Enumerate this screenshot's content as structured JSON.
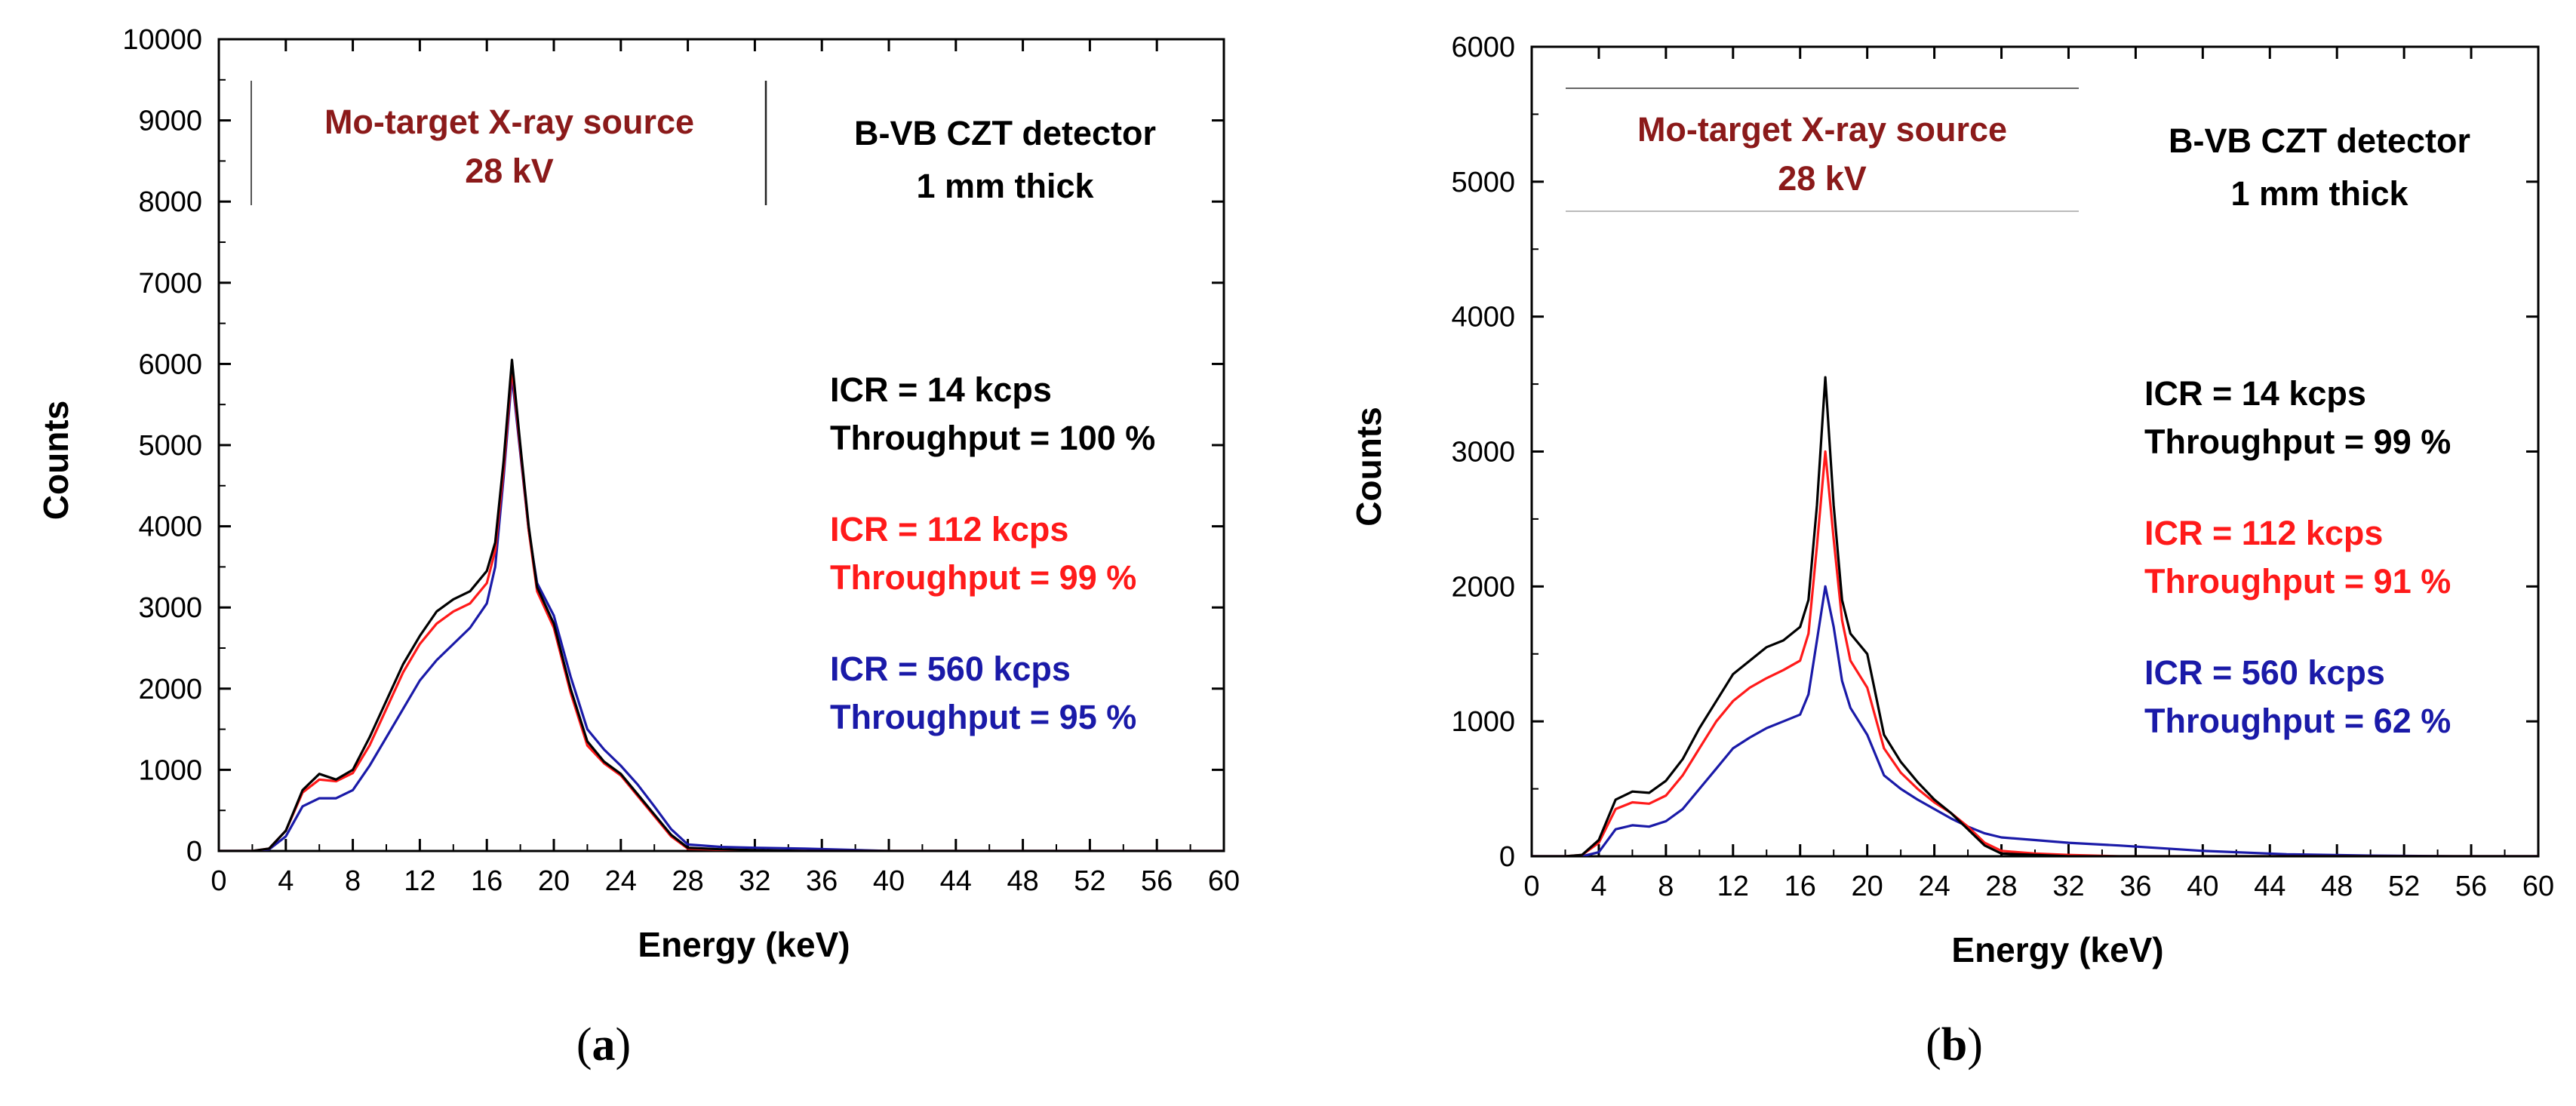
{
  "figure": {
    "panel_labels": [
      "a",
      "b"
    ]
  },
  "chart_data": [
    {
      "type": "line",
      "panel": "a",
      "xlabel": "Energy (keV)",
      "ylabel": "Counts",
      "xlim": [
        0,
        60
      ],
      "ylim": [
        0,
        10000
      ],
      "xticks": [
        "0",
        "4",
        "8",
        "12",
        "16",
        "20",
        "24",
        "28",
        "32",
        "36",
        "40",
        "44",
        "48",
        "52",
        "56",
        "60"
      ],
      "yticks": [
        "0",
        "1000",
        "2000",
        "3000",
        "4000",
        "5000",
        "6000",
        "7000",
        "8000",
        "9000",
        "10000"
      ],
      "source_label": [
        "Mo-target X-ray source",
        "28 kV"
      ],
      "detector_label": [
        "B-VB CZT detector",
        "1 mm thick"
      ],
      "colors": {
        "source": "#8b1a1a",
        "black": "#000000",
        "red": "#ff1a1a",
        "blue": "#1a1aa8"
      },
      "series": [
        {
          "name": "ICR = 14 kcps",
          "note": "Throughput = 100 %",
          "color": "#000000",
          "x": [
            0,
            2,
            3,
            4,
            5,
            6,
            7,
            8,
            9,
            10,
            11,
            12,
            13,
            14,
            15,
            16,
            16.5,
            17,
            17.5,
            18,
            18.5,
            19,
            20,
            21,
            22,
            23,
            24,
            25,
            26,
            27,
            28,
            30,
            32,
            35,
            40,
            50,
            60
          ],
          "y": [
            0,
            0,
            30,
            250,
            750,
            950,
            880,
            1000,
            1400,
            1850,
            2300,
            2650,
            2950,
            3100,
            3200,
            3450,
            3800,
            4800,
            6050,
            5000,
            4000,
            3250,
            2800,
            2000,
            1350,
            1100,
            950,
            700,
            450,
            200,
            40,
            20,
            10,
            0,
            0,
            0,
            0
          ]
        },
        {
          "name": "ICR = 112 kcps",
          "note": "Throughput = 99 %",
          "color": "#ff1a1a",
          "x": [
            0,
            2,
            3,
            4,
            5,
            6,
            7,
            8,
            9,
            10,
            11,
            12,
            13,
            14,
            15,
            16,
            16.5,
            17,
            17.5,
            18,
            18.5,
            19,
            20,
            21,
            22,
            23,
            24,
            25,
            26,
            27,
            28,
            30,
            32,
            35,
            40,
            50,
            60
          ],
          "y": [
            0,
            0,
            30,
            250,
            720,
            880,
            860,
            960,
            1300,
            1750,
            2200,
            2550,
            2800,
            2950,
            3050,
            3300,
            3700,
            4700,
            5950,
            4950,
            3950,
            3200,
            2750,
            1950,
            1300,
            1080,
            930,
            680,
            430,
            180,
            30,
            15,
            5,
            0,
            0,
            0,
            0
          ]
        },
        {
          "name": "ICR = 560 kcps",
          "note": "Throughput = 95 %",
          "color": "#1a1aa8",
          "x": [
            0,
            2,
            3,
            4,
            5,
            6,
            7,
            8,
            9,
            10,
            11,
            12,
            13,
            14,
            15,
            16,
            16.5,
            17,
            17.5,
            18,
            18.5,
            19,
            20,
            21,
            22,
            23,
            24,
            25,
            26,
            27,
            28,
            30,
            32,
            35,
            40,
            50,
            60
          ],
          "y": [
            0,
            0,
            20,
            180,
            550,
            650,
            650,
            750,
            1050,
            1400,
            1750,
            2100,
            2350,
            2550,
            2750,
            3050,
            3500,
            4600,
            5850,
            4900,
            3950,
            3300,
            2900,
            2150,
            1500,
            1250,
            1050,
            820,
            550,
            270,
            80,
            50,
            40,
            30,
            0,
            0,
            0
          ]
        }
      ]
    },
    {
      "type": "line",
      "panel": "b",
      "xlabel": "Energy (keV)",
      "ylabel": "Counts",
      "xlim": [
        0,
        60
      ],
      "ylim": [
        0,
        6000
      ],
      "xticks": [
        "0",
        "4",
        "8",
        "12",
        "16",
        "20",
        "24",
        "28",
        "32",
        "36",
        "40",
        "44",
        "48",
        "52",
        "56",
        "60"
      ],
      "yticks": [
        "0",
        "1000",
        "2000",
        "3000",
        "4000",
        "5000",
        "6000"
      ],
      "source_label": [
        "Mo-target X-ray source",
        "28 kV"
      ],
      "detector_label": [
        "B-VB CZT detector",
        "1 mm thick"
      ],
      "colors": {
        "source": "#8b1a1a",
        "black": "#000000",
        "red": "#ff1a1a",
        "blue": "#1a1aa8"
      },
      "series": [
        {
          "name": "ICR = 14 kcps",
          "note": "Throughput = 99 %",
          "color": "#000000",
          "x": [
            0,
            2,
            3,
            4,
            5,
            6,
            7,
            8,
            9,
            10,
            11,
            12,
            13,
            14,
            15,
            16,
            16.5,
            17,
            17.5,
            18,
            18.5,
            19,
            20,
            21,
            22,
            23,
            24,
            25,
            26,
            27,
            28,
            30,
            32,
            35,
            40,
            50,
            60
          ],
          "y": [
            0,
            0,
            10,
            120,
            420,
            480,
            470,
            560,
            720,
            950,
            1150,
            1350,
            1450,
            1550,
            1600,
            1700,
            1900,
            2600,
            3550,
            2600,
            1900,
            1650,
            1500,
            900,
            700,
            550,
            420,
            320,
            200,
            80,
            20,
            10,
            0,
            0,
            0,
            0,
            0
          ]
        },
        {
          "name": "ICR = 112 kcps",
          "note": "Throughput = 91 %",
          "color": "#ff1a1a",
          "x": [
            0,
            2,
            3,
            4,
            5,
            6,
            7,
            8,
            9,
            10,
            11,
            12,
            13,
            14,
            15,
            16,
            16.5,
            17,
            17.5,
            18,
            18.5,
            19,
            20,
            21,
            22,
            23,
            24,
            25,
            26,
            27,
            28,
            30,
            32,
            35,
            40,
            50,
            60
          ],
          "y": [
            0,
            0,
            10,
            100,
            350,
            400,
            390,
            450,
            600,
            800,
            1000,
            1150,
            1250,
            1320,
            1380,
            1450,
            1650,
            2300,
            3000,
            2350,
            1750,
            1450,
            1250,
            800,
            620,
            500,
            400,
            320,
            220,
            100,
            40,
            20,
            10,
            0,
            0,
            0,
            0
          ]
        },
        {
          "name": "ICR = 560 kcps",
          "note": "Throughput = 62 %",
          "color": "#1a1aa8",
          "x": [
            0,
            2,
            3,
            4,
            5,
            6,
            7,
            8,
            9,
            10,
            11,
            12,
            13,
            14,
            15,
            16,
            16.5,
            17,
            17.5,
            18,
            18.5,
            19,
            20,
            21,
            22,
            23,
            24,
            25,
            26,
            27,
            28,
            30,
            32,
            35,
            40,
            45,
            50,
            55,
            60
          ],
          "y": [
            0,
            0,
            0,
            30,
            200,
            230,
            220,
            260,
            350,
            500,
            650,
            800,
            880,
            950,
            1000,
            1050,
            1200,
            1600,
            2000,
            1700,
            1300,
            1100,
            900,
            600,
            500,
            420,
            350,
            280,
            220,
            170,
            140,
            120,
            100,
            80,
            40,
            15,
            5,
            0,
            0
          ]
        }
      ]
    }
  ]
}
